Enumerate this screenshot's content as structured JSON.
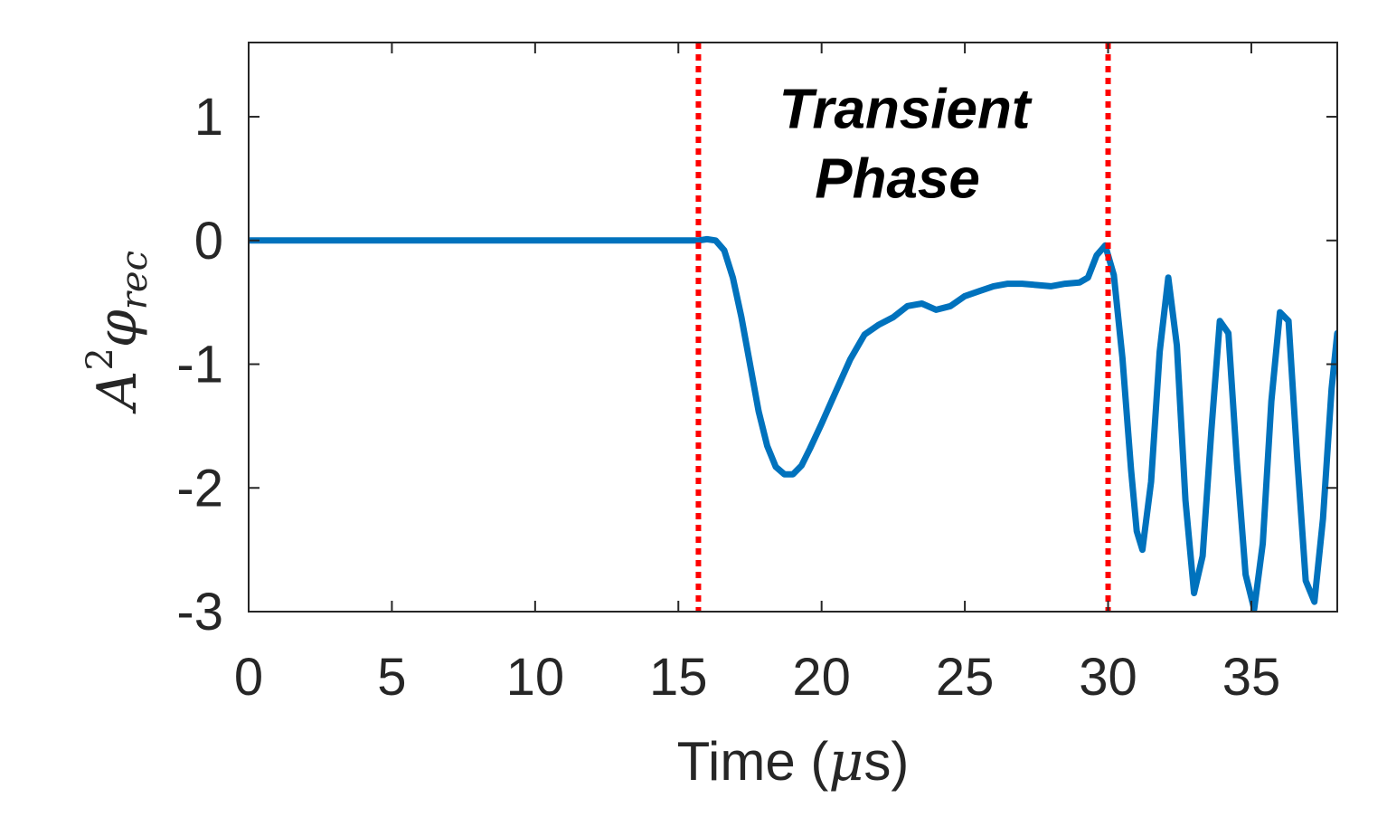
{
  "chart_data": {
    "type": "line",
    "title": "",
    "xlabel_prefix": "Time (",
    "xlabel_mu": "μ",
    "xlabel_suffix": "s)",
    "ylabel_base": "A",
    "ylabel_sup": "2",
    "ylabel_phi": "φ",
    "ylabel_sub": "rec",
    "xlim": [
      0,
      38
    ],
    "ylim": [
      -3,
      1.6
    ],
    "xticks": [
      0,
      5,
      10,
      15,
      20,
      25,
      30,
      35
    ],
    "yticks": [
      -3,
      -2,
      -1,
      0,
      1
    ],
    "grid": false,
    "series": [
      {
        "color": "#0072BD",
        "x": [
          0,
          2,
          4,
          6,
          8,
          10,
          12,
          14,
          15,
          15.7,
          16.0,
          16.3,
          16.6,
          16.9,
          17.2,
          17.5,
          17.8,
          18.1,
          18.4,
          18.7,
          19.0,
          19.3,
          19.6,
          20.0,
          20.5,
          21.0,
          21.5,
          22.0,
          22.5,
          23.0,
          23.5,
          24.0,
          24.5,
          25.0,
          25.5,
          26.0,
          26.5,
          27.0,
          27.5,
          28.0,
          28.5,
          29.0,
          29.3,
          29.6,
          29.9,
          30.2,
          30.5,
          30.8,
          31.0,
          31.2,
          31.5,
          31.8,
          32.1,
          32.4,
          32.7,
          33.0,
          33.3,
          33.6,
          33.9,
          34.2,
          34.5,
          34.8,
          35.1,
          35.4,
          35.7,
          36.0,
          36.3,
          36.6,
          36.9,
          37.2,
          37.5,
          37.8,
          38.0
        ],
        "y": [
          0,
          0,
          0,
          0,
          0,
          0,
          0,
          0,
          0,
          0,
          0.01,
          0.0,
          -0.08,
          -0.3,
          -0.62,
          -1.0,
          -1.38,
          -1.66,
          -1.83,
          -1.89,
          -1.89,
          -1.82,
          -1.68,
          -1.48,
          -1.22,
          -0.96,
          -0.76,
          -0.68,
          -0.62,
          -0.53,
          -0.51,
          -0.56,
          -0.53,
          -0.45,
          -0.41,
          -0.37,
          -0.35,
          -0.35,
          -0.36,
          -0.37,
          -0.35,
          -0.34,
          -0.3,
          -0.12,
          -0.04,
          -0.28,
          -0.95,
          -1.85,
          -2.35,
          -2.5,
          -1.95,
          -0.9,
          -0.3,
          -0.85,
          -2.1,
          -2.85,
          -2.55,
          -1.55,
          -0.65,
          -0.75,
          -1.8,
          -2.7,
          -2.98,
          -2.45,
          -1.3,
          -0.58,
          -0.65,
          -1.75,
          -2.75,
          -2.92,
          -2.25,
          -1.2,
          -0.75
        ]
      }
    ],
    "vlines": [
      {
        "x": 15.7,
        "color": "#ff0000",
        "style": "dotted"
      },
      {
        "x": 30.0,
        "color": "#ff0000",
        "style": "dotted"
      }
    ],
    "annotations": [
      {
        "text_line1": "Transient",
        "text_line2": "Phase",
        "x": 22.9,
        "y": 1.07
      }
    ]
  }
}
